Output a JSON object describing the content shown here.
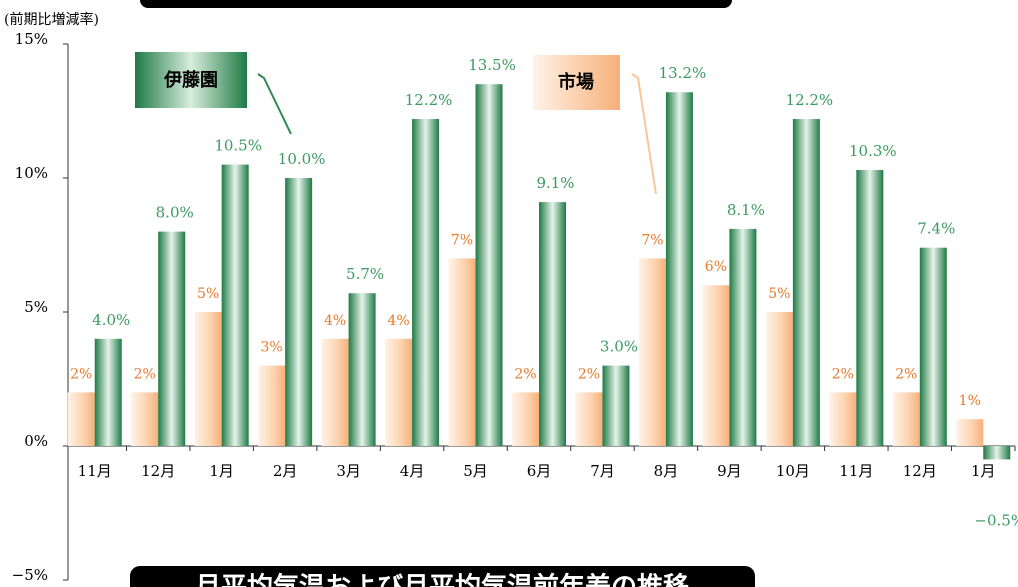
{
  "chart_data": {
    "type": "bar",
    "y_axis_label": "(前期比増減率)",
    "caption": "月平均気温および月平均気温前年差の推移",
    "categories": [
      "11月",
      "12月",
      "1月",
      "2月",
      "3月",
      "4月",
      "5月",
      "6月",
      "7月",
      "8月",
      "9月",
      "10月",
      "11月",
      "12月",
      "1月"
    ],
    "series": [
      {
        "name": "市場",
        "color": "#f7b98a",
        "label_color": "#e8782a",
        "values": [
          2,
          2,
          5,
          3,
          4,
          4,
          7,
          2,
          2,
          7,
          6,
          5,
          2,
          2,
          1
        ],
        "value_labels": [
          "2%",
          "2%",
          "5%",
          "3%",
          "4%",
          "4%",
          "7%",
          "2%",
          "2%",
          "7%",
          "6%",
          "5%",
          "2%",
          "2%",
          "1%"
        ]
      },
      {
        "name": "伊藤園",
        "color": "#2f8a55",
        "label_color": "#3b9a60",
        "values": [
          4.0,
          8.0,
          10.5,
          10.0,
          5.7,
          12.2,
          13.5,
          9.1,
          3.0,
          13.2,
          8.1,
          12.2,
          10.3,
          7.4,
          -0.5
        ],
        "value_labels": [
          "4.0%",
          "8.0%",
          "10.5%",
          "10.0%",
          "5.7%",
          "12.2%",
          "13.5%",
          "9.1%",
          "3.0%",
          "13.2%",
          "8.1%",
          "12.2%",
          "10.3%",
          "7.4%",
          "−0.5%"
        ]
      }
    ],
    "ylim": [
      -5,
      15
    ],
    "yticks": [
      {
        "value": -5,
        "label": "−5%"
      },
      {
        "value": 0,
        "label": "0%"
      },
      {
        "value": 5,
        "label": "5%"
      },
      {
        "value": 10,
        "label": "10%"
      },
      {
        "value": 15,
        "label": "15%"
      }
    ]
  }
}
